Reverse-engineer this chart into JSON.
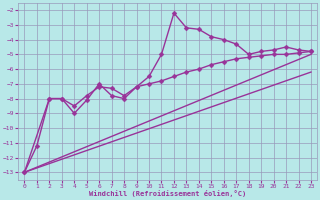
{
  "xlabel": "Windchill (Refroidissement éolien,°C)",
  "background_color": "#b8e8e8",
  "grid_color": "#9999bb",
  "line_color": "#993399",
  "xlim": [
    -0.5,
    23.5
  ],
  "ylim": [
    -13.5,
    -1.5
  ],
  "xticks": [
    0,
    1,
    2,
    3,
    4,
    5,
    6,
    7,
    8,
    9,
    10,
    11,
    12,
    13,
    14,
    15,
    16,
    17,
    18,
    19,
    20,
    21,
    22,
    23
  ],
  "yticks": [
    -2,
    -3,
    -4,
    -5,
    -6,
    -7,
    -8,
    -9,
    -10,
    -11,
    -12,
    -13
  ],
  "series": [
    {
      "x": [
        0,
        1,
        2,
        3,
        4,
        5,
        6,
        7,
        8,
        9,
        10,
        11,
        12,
        13,
        14,
        15,
        16,
        17,
        18,
        19,
        20,
        21,
        22,
        23
      ],
      "y": [
        -13,
        -11.2,
        -8.0,
        -8.0,
        -9.0,
        -8.1,
        -7.0,
        -7.8,
        -8.0,
        -7.2,
        -6.5,
        -5.0,
        -2.2,
        -3.2,
        -3.3,
        -3.8,
        -4.0,
        -4.3,
        -5.0,
        -4.8,
        -4.7,
        -4.5,
        -4.7,
        -4.8
      ],
      "has_marker": true,
      "markersize": 2.5,
      "linewidth": 1.0
    },
    {
      "x": [
        0,
        2,
        3,
        4,
        5,
        6,
        7,
        8,
        9,
        10,
        11,
        12,
        13,
        14,
        15,
        16,
        17,
        18,
        19,
        20,
        21,
        22,
        23
      ],
      "y": [
        -13,
        -8.0,
        -8.0,
        -8.5,
        -7.8,
        -7.2,
        -7.3,
        -7.8,
        -7.2,
        -7.0,
        -6.8,
        -6.5,
        -6.2,
        -6.0,
        -5.7,
        -5.5,
        -5.3,
        -5.2,
        -5.1,
        -5.0,
        -5.0,
        -4.9,
        -4.8
      ],
      "has_marker": true,
      "markersize": 2.5,
      "linewidth": 1.0
    },
    {
      "x": [
        0,
        23
      ],
      "y": [
        -13,
        -5.0
      ],
      "has_marker": false,
      "linewidth": 1.0
    },
    {
      "x": [
        0,
        23
      ],
      "y": [
        -13,
        -6.2
      ],
      "has_marker": false,
      "linewidth": 1.0
    }
  ]
}
